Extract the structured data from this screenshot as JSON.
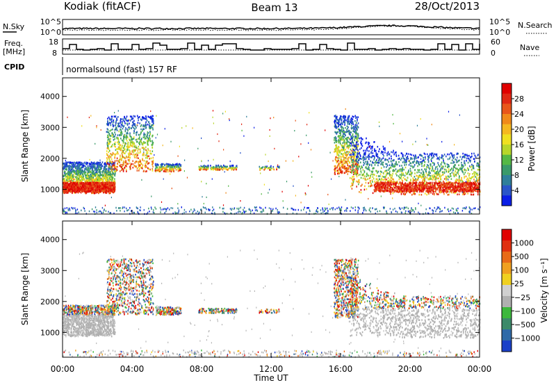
{
  "header": {
    "title_left": "Kodiak (fitACF)",
    "title_center": "Beam 13",
    "title_right": "28/Oct/2013"
  },
  "top_panels": {
    "nsky_label": "N.Sky",
    "nsky_ticks": [
      "10^5",
      "10^0"
    ],
    "nsearch_label": "N.Search",
    "nsearch_ticks": [
      "10^5",
      "10^0"
    ],
    "freq_label_1": "Freq.",
    "freq_label_2": "[MHz]",
    "freq_ticks": [
      "18",
      "8"
    ],
    "nave_label": "Nave",
    "nave_ticks": [
      "60",
      "0"
    ],
    "cpid_label": "CPID",
    "cpid_text": "normalsound (fast) 157 RF"
  },
  "chart_data": [
    {
      "type": "heatmap",
      "name": "power-panel",
      "ylabel": "Slant Range [km]",
      "xlabel": "",
      "x_range_hours": [
        0,
        24
      ],
      "ylim": [
        200,
        4600
      ],
      "y_ticks": [
        "1000",
        "2000",
        "3000",
        "4000"
      ],
      "colorbar": {
        "label": "Power [dB]",
        "ticks": [
          "4",
          "8",
          "12",
          "16",
          "20",
          "24",
          "28"
        ],
        "colors": [
          "#0b1ee6",
          "#2a55c8",
          "#2f7f9a",
          "#3a9a6a",
          "#55b845",
          "#b8d62a",
          "#f0e020",
          "#f5b820",
          "#f08a1a",
          "#e8561a",
          "#e02814",
          "#e00000"
        ]
      },
      "ground_scatter_color": "#a8a8a8",
      "echo_regions": [
        {
          "t0": 0.0,
          "t1": 3.0,
          "r0": 900,
          "r1": 1900
        },
        {
          "t0": 2.5,
          "t1": 5.2,
          "r0": 1600,
          "r1": 3400
        },
        {
          "t0": 5.3,
          "t1": 6.8,
          "r0": 1600,
          "r1": 1850
        },
        {
          "t0": 7.8,
          "t1": 10.0,
          "r0": 1650,
          "r1": 1800
        },
        {
          "t0": 11.3,
          "t1": 12.5,
          "r0": 1650,
          "r1": 1780
        },
        {
          "t0": 15.6,
          "t1": 17.0,
          "r0": 1500,
          "r1": 3400
        },
        {
          "t0": 16.5,
          "t1": 24.0,
          "r0": 850,
          "r1": 2200
        }
      ]
    },
    {
      "type": "heatmap",
      "name": "velocity-panel",
      "ylabel": "Slant Range [km]",
      "xlabel": "Time UT",
      "x_ticks": [
        "00:00",
        "04:00",
        "08:00",
        "12:00",
        "16:00",
        "20:00",
        "00:00"
      ],
      "x_range_hours": [
        0,
        24
      ],
      "ylim": [
        200,
        4600
      ],
      "y_ticks": [
        "1000",
        "2000",
        "3000",
        "4000"
      ],
      "colorbar": {
        "label": "Velocity [m s⁻¹]",
        "ticks": [
          "1000",
          "500",
          "100",
          "25",
          "−25",
          "−100",
          "−500",
          "−1000"
        ],
        "colors": [
          "#1a40c8",
          "#2f6aa8",
          "#3c8a6a",
          "#3cb83c",
          "#b0b0b0",
          "#d0d0d0",
          "#f0d020",
          "#f0a020",
          "#e86a18",
          "#e03010",
          "#e00000"
        ]
      },
      "ground_scatter_color": "#b4b4b4"
    }
  ]
}
